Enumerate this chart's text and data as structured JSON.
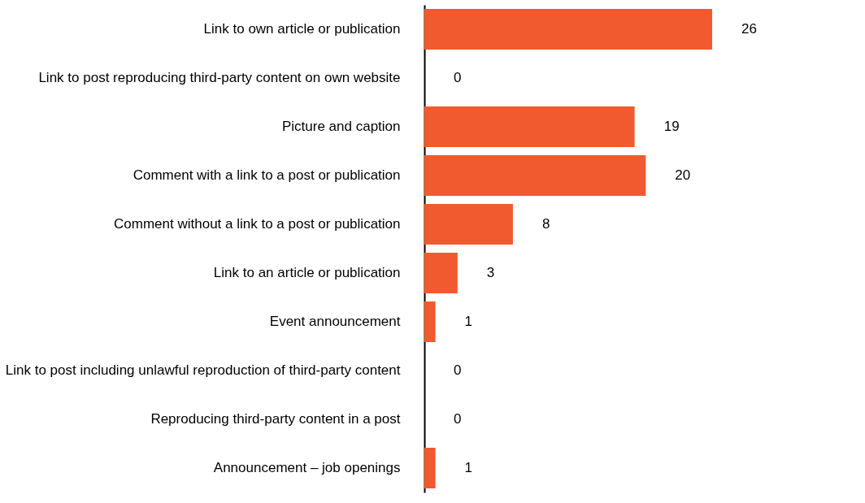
{
  "chart_data": {
    "type": "bar",
    "orientation": "horizontal",
    "categories": [
      "Link to own article or publication",
      "Link to post reproducing third-party content on own website",
      "Picture and caption",
      "Comment with a link to a post or publication",
      "Comment without a link to a post or publication",
      "Link to an article or publication",
      "Event announcement",
      "Link to post including unlawful reproduction of third-party content",
      "Reproducing third-party content in a post",
      "Announcement – job openings"
    ],
    "values": [
      26,
      0,
      19,
      20,
      8,
      3,
      1,
      0,
      0,
      1
    ],
    "color": "#f15a2e",
    "data_labels": true
  }
}
